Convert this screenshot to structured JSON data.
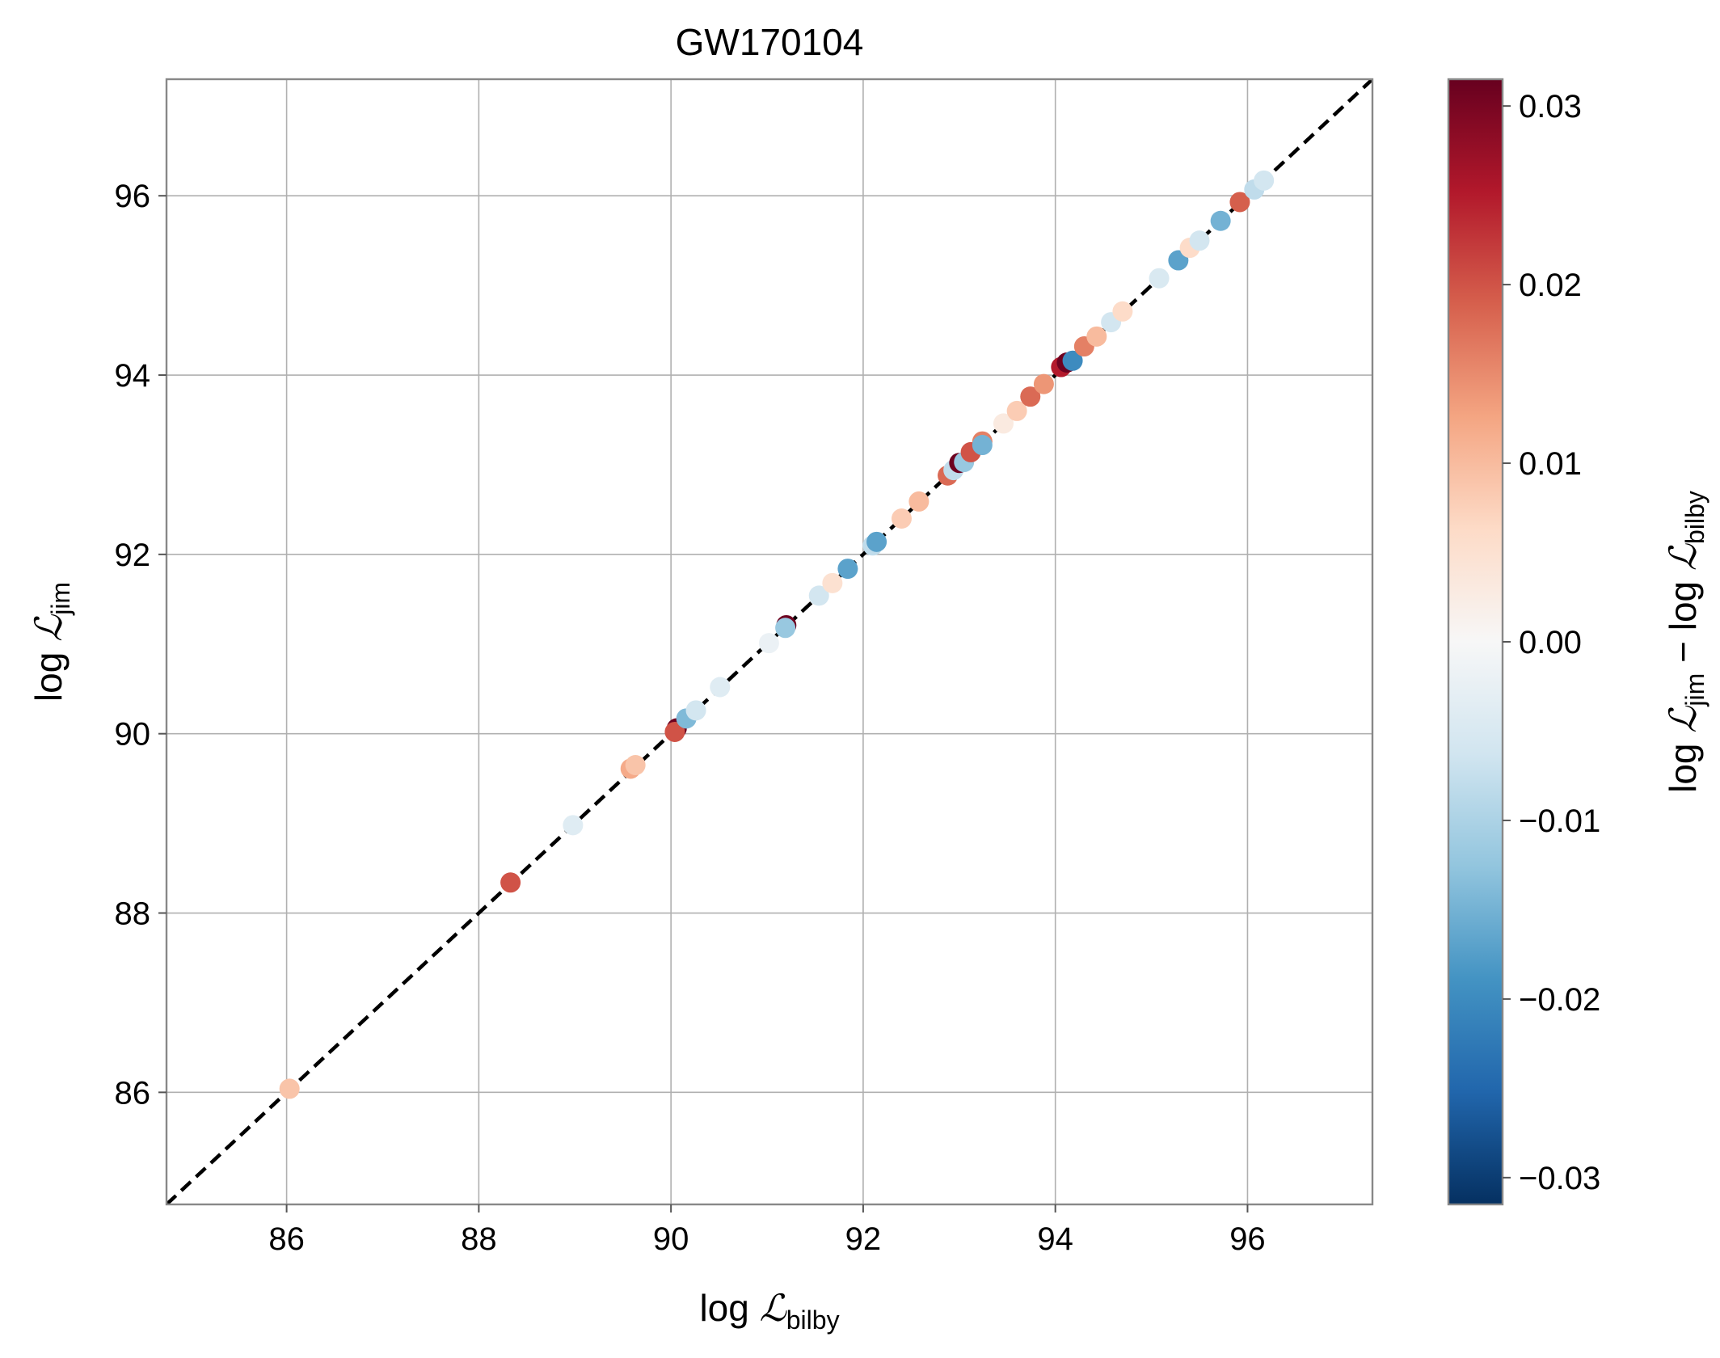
{
  "chart_data": {
    "type": "scatter",
    "title": "GW170104",
    "xlabel": {
      "prefix": "log",
      "symbol": "ℒ",
      "subscript": "bilby"
    },
    "ylabel": {
      "prefix": "log",
      "symbol": "ℒ",
      "subscript": "jim"
    },
    "colorbar_label": {
      "prefix1": "log",
      "symbol1": "ℒ",
      "subscript1": "jim",
      "minus": "−",
      "prefix2": "log",
      "symbol2": "ℒ",
      "subscript2": "bilby"
    },
    "xlim": [
      84.75,
      97.3
    ],
    "ylim": [
      84.75,
      97.3
    ],
    "clim": [
      -0.0315,
      0.0315
    ],
    "x_ticks": [
      "86",
      "88",
      "90",
      "92",
      "94",
      "96"
    ],
    "y_ticks": [
      "86",
      "88",
      "90",
      "92",
      "94",
      "96"
    ],
    "x_tick_values": [
      86,
      88,
      90,
      92,
      94,
      96
    ],
    "y_tick_values": [
      86,
      88,
      90,
      92,
      94,
      96
    ],
    "colorbar_ticks": [
      "0.03",
      "0.02",
      "0.01",
      "0.00",
      "−0.01",
      "−0.02",
      "−0.03"
    ],
    "colorbar_tick_values": [
      0.03,
      0.02,
      0.01,
      0.0,
      -0.01,
      -0.02,
      -0.03
    ],
    "colormap": "RdBu_r",
    "colormap_stops": [
      "#053061",
      "#2166ac",
      "#4393c3",
      "#92c5de",
      "#d1e5f0",
      "#f7f7f7",
      "#fddbc7",
      "#f4a582",
      "#d6604d",
      "#b2182b",
      "#67001f"
    ],
    "grid": true,
    "reference_line": "y = x (dashed black)",
    "points": [
      {
        "x": 86.03,
        "y": 86.04,
        "c": 0.009
      },
      {
        "x": 88.33,
        "y": 88.34,
        "c": 0.02
      },
      {
        "x": 88.98,
        "y": 88.98,
        "c": -0.004
      },
      {
        "x": 89.58,
        "y": 89.61,
        "c": 0.012
      },
      {
        "x": 89.63,
        "y": 89.65,
        "c": 0.009
      },
      {
        "x": 90.06,
        "y": 90.06,
        "c": 0.031
      },
      {
        "x": 90.04,
        "y": 90.02,
        "c": 0.02
      },
      {
        "x": 90.16,
        "y": 90.17,
        "c": -0.014
      },
      {
        "x": 90.26,
        "y": 90.26,
        "c": -0.006
      },
      {
        "x": 90.51,
        "y": 90.52,
        "c": -0.004
      },
      {
        "x": 91.02,
        "y": 91.01,
        "c": -0.002
      },
      {
        "x": 91.2,
        "y": 91.21,
        "c": 0.031
      },
      {
        "x": 91.19,
        "y": 91.18,
        "c": -0.012
      },
      {
        "x": 91.54,
        "y": 91.54,
        "c": -0.006
      },
      {
        "x": 91.68,
        "y": 91.68,
        "c": 0.005
      },
      {
        "x": 91.84,
        "y": 91.84,
        "c": -0.017
      },
      {
        "x": 92.1,
        "y": 92.1,
        "c": -0.008
      },
      {
        "x": 92.14,
        "y": 92.14,
        "c": -0.017
      },
      {
        "x": 92.4,
        "y": 92.4,
        "c": 0.008
      },
      {
        "x": 92.58,
        "y": 92.59,
        "c": 0.01
      },
      {
        "x": 92.88,
        "y": 92.88,
        "c": 0.018
      },
      {
        "x": 92.94,
        "y": 92.94,
        "c": -0.008
      },
      {
        "x": 93.0,
        "y": 93.02,
        "c": 0.031
      },
      {
        "x": 93.05,
        "y": 93.03,
        "c": -0.012
      },
      {
        "x": 93.12,
        "y": 93.14,
        "c": 0.02
      },
      {
        "x": 93.24,
        "y": 93.26,
        "c": 0.016
      },
      {
        "x": 93.24,
        "y": 93.22,
        "c": -0.015
      },
      {
        "x": 93.46,
        "y": 93.46,
        "c": 0.003
      },
      {
        "x": 93.6,
        "y": 93.6,
        "c": 0.008
      },
      {
        "x": 93.74,
        "y": 93.76,
        "c": 0.018
      },
      {
        "x": 93.88,
        "y": 93.9,
        "c": 0.014
      },
      {
        "x": 94.06,
        "y": 94.09,
        "c": 0.025
      },
      {
        "x": 94.12,
        "y": 94.14,
        "c": 0.031
      },
      {
        "x": 94.18,
        "y": 94.16,
        "c": -0.02
      },
      {
        "x": 94.3,
        "y": 94.32,
        "c": 0.016
      },
      {
        "x": 94.43,
        "y": 94.43,
        "c": 0.01
      },
      {
        "x": 94.58,
        "y": 94.59,
        "c": -0.006
      },
      {
        "x": 94.7,
        "y": 94.71,
        "c": 0.006
      },
      {
        "x": 95.08,
        "y": 95.08,
        "c": -0.005
      },
      {
        "x": 95.28,
        "y": 95.28,
        "c": -0.017
      },
      {
        "x": 95.4,
        "y": 95.42,
        "c": 0.006
      },
      {
        "x": 95.5,
        "y": 95.5,
        "c": -0.006
      },
      {
        "x": 95.72,
        "y": 95.72,
        "c": -0.015
      },
      {
        "x": 95.92,
        "y": 95.93,
        "c": 0.019
      },
      {
        "x": 96.07,
        "y": 96.07,
        "c": -0.008
      },
      {
        "x": 96.17,
        "y": 96.17,
        "c": -0.006
      }
    ]
  }
}
